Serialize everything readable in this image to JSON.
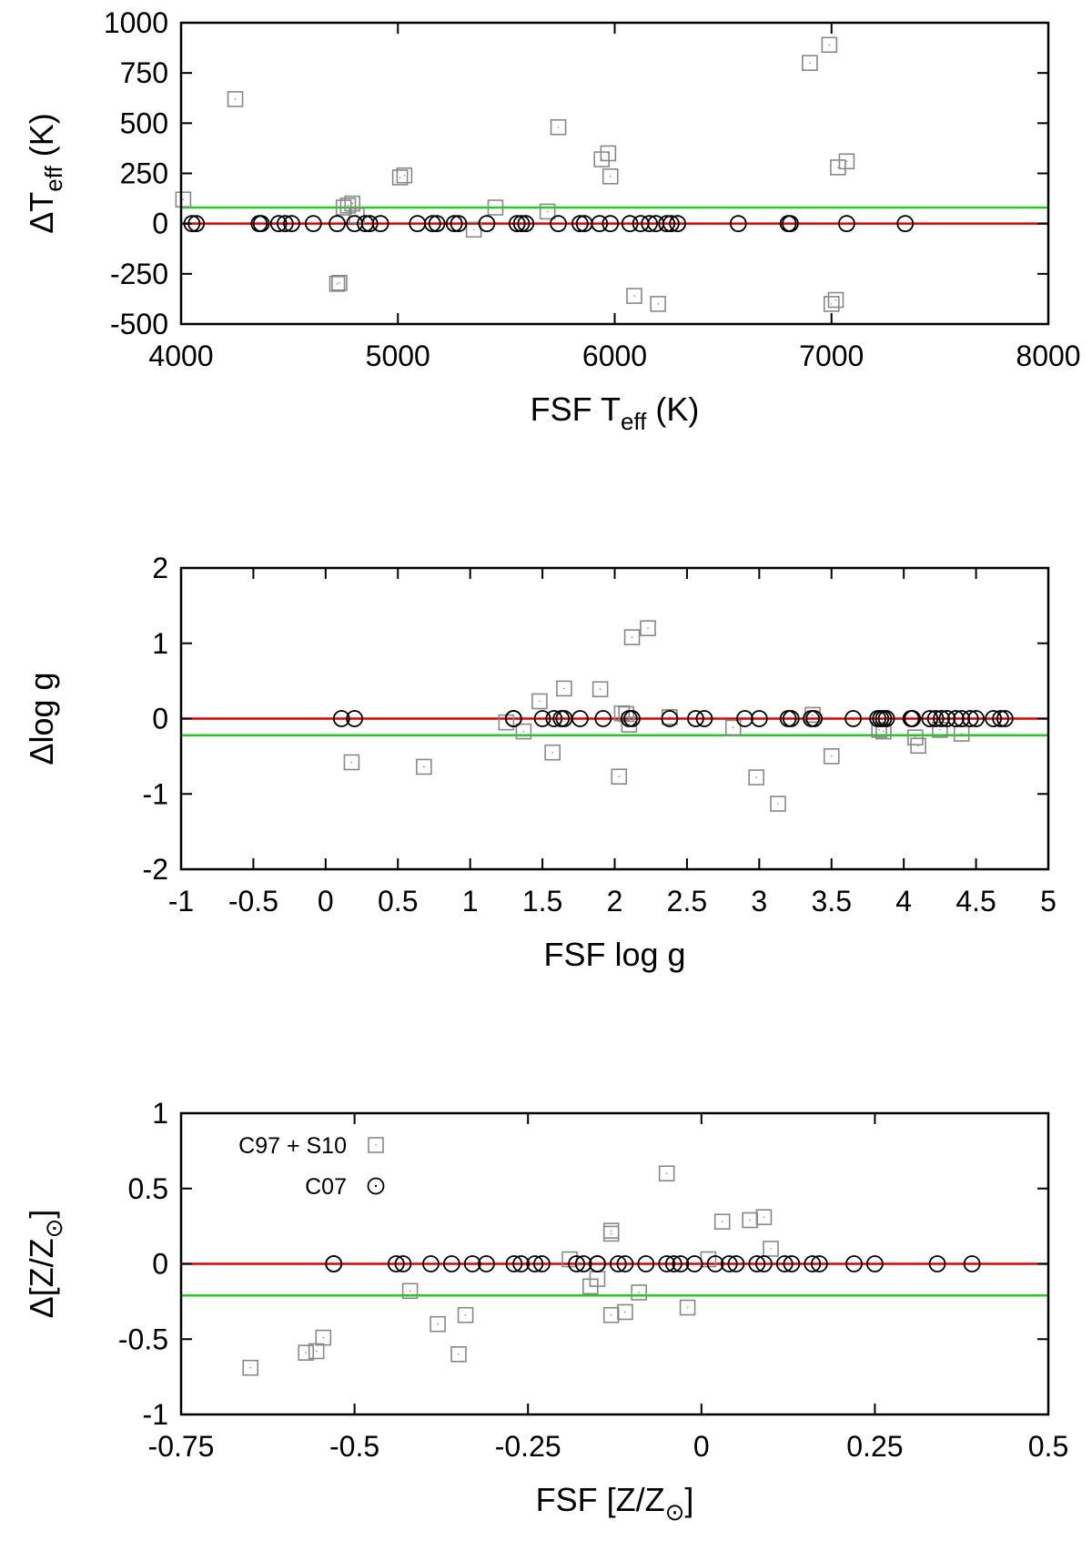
{
  "chart_data": [
    {
      "type": "scatter",
      "xlabel": "FSF T_eff (K)",
      "ylabel": "ΔT_eff (K)",
      "xlim": [
        4000,
        8000
      ],
      "ylim": [
        -500,
        1000
      ],
      "xticks": [
        "4000",
        "5000",
        "6000",
        "7000",
        "8000"
      ],
      "yticks": [
        "1000",
        "750",
        "500",
        "250",
        "0",
        "-250",
        "-500"
      ],
      "xtick_values": [
        4000,
        5000,
        6000,
        7000,
        8000
      ],
      "ytick_values": [
        1000,
        750,
        500,
        250,
        0,
        -250,
        -500
      ],
      "lines": [
        {
          "color": "#dd0000",
          "y": 0
        },
        {
          "color": "#22cc22",
          "y": 80
        }
      ],
      "series": [
        {
          "marker": "square",
          "color": "#888888",
          "points": [
            [
              4010,
              120
            ],
            [
              4250,
              620
            ],
            [
              4720,
              -300
            ],
            [
              4730,
              -295
            ],
            [
              4750,
              80
            ],
            [
              4770,
              90
            ],
            [
              4790,
              100
            ],
            [
              4810,
              40
            ],
            [
              5010,
              230
            ],
            [
              5030,
              240
            ],
            [
              5350,
              -30
            ],
            [
              5450,
              80
            ],
            [
              5690,
              60
            ],
            [
              5740,
              480
            ],
            [
              5940,
              320
            ],
            [
              5970,
              350
            ],
            [
              5980,
              235
            ],
            [
              6090,
              -360
            ],
            [
              6200,
              -400
            ],
            [
              6900,
              800
            ],
            [
              6990,
              890
            ],
            [
              7000,
              -400
            ],
            [
              7020,
              -380
            ],
            [
              7030,
              280
            ],
            [
              7070,
              310
            ]
          ]
        },
        {
          "marker": "circle",
          "color": "#000000",
          "points": [
            [
              4050,
              0
            ],
            [
              4070,
              0
            ],
            [
              4360,
              0
            ],
            [
              4370,
              0
            ],
            [
              4450,
              0
            ],
            [
              4480,
              0
            ],
            [
              4510,
              0
            ],
            [
              4610,
              0
            ],
            [
              4720,
              0
            ],
            [
              4800,
              0
            ],
            [
              4850,
              0
            ],
            [
              4870,
              0
            ],
            [
              4920,
              0
            ],
            [
              5090,
              0
            ],
            [
              5160,
              0
            ],
            [
              5180,
              0
            ],
            [
              5260,
              0
            ],
            [
              5280,
              0
            ],
            [
              5410,
              0
            ],
            [
              5550,
              0
            ],
            [
              5570,
              0
            ],
            [
              5590,
              0
            ],
            [
              5740,
              0
            ],
            [
              5840,
              0
            ],
            [
              5860,
              0
            ],
            [
              5930,
              0
            ],
            [
              5980,
              0
            ],
            [
              6070,
              0
            ],
            [
              6120,
              0
            ],
            [
              6160,
              0
            ],
            [
              6190,
              0
            ],
            [
              6240,
              0
            ],
            [
              6260,
              0
            ],
            [
              6290,
              0
            ],
            [
              6570,
              0
            ],
            [
              6800,
              0
            ],
            [
              6810,
              0
            ],
            [
              7070,
              0
            ],
            [
              7340,
              0
            ]
          ]
        }
      ]
    },
    {
      "type": "scatter",
      "xlabel": "FSF log g",
      "ylabel": "Δlog g",
      "xlim": [
        -1,
        5
      ],
      "ylim": [
        -2,
        2
      ],
      "xticks": [
        "-1",
        "-0.5",
        "0",
        "0.5",
        "1",
        "1.5",
        "2",
        "2.5",
        "3",
        "3.5",
        "4",
        "4.5",
        "5"
      ],
      "yticks": [
        "2",
        "1",
        "0",
        "-1",
        "-2"
      ],
      "xtick_values": [
        -1,
        -0.5,
        0,
        0.5,
        1,
        1.5,
        2,
        2.5,
        3,
        3.5,
        4,
        4.5,
        5
      ],
      "ytick_values": [
        2,
        1,
        0,
        -1,
        -2
      ],
      "lines": [
        {
          "color": "#dd0000",
          "y": 0
        },
        {
          "color": "#22cc22",
          "y": -0.22
        }
      ],
      "series": [
        {
          "marker": "square",
          "color": "#888888",
          "points": [
            [
              0.18,
              -0.58
            ],
            [
              0.68,
              -0.64
            ],
            [
              1.25,
              -0.05
            ],
            [
              1.37,
              -0.17
            ],
            [
              1.48,
              0.23
            ],
            [
              1.57,
              -0.45
            ],
            [
              1.65,
              0.4
            ],
            [
              1.9,
              0.39
            ],
            [
              2.03,
              -0.77
            ],
            [
              2.05,
              0.07
            ],
            [
              2.08,
              0.06
            ],
            [
              2.1,
              -0.08
            ],
            [
              2.12,
              1.08
            ],
            [
              2.23,
              1.2
            ],
            [
              2.38,
              0.02
            ],
            [
              2.82,
              -0.12
            ],
            [
              2.98,
              -0.78
            ],
            [
              3.13,
              -1.13
            ],
            [
              3.37,
              0.05
            ],
            [
              3.5,
              -0.5
            ],
            [
              3.83,
              -0.15
            ],
            [
              3.86,
              -0.17
            ],
            [
              4.08,
              -0.25
            ],
            [
              4.1,
              -0.36
            ],
            [
              4.25,
              -0.15
            ],
            [
              4.4,
              -0.2
            ]
          ]
        },
        {
          "marker": "circle",
          "color": "#000000",
          "points": [
            [
              0.11,
              0
            ],
            [
              0.2,
              0
            ],
            [
              1.3,
              0
            ],
            [
              1.3,
              0
            ],
            [
              1.5,
              0
            ],
            [
              1.58,
              0
            ],
            [
              1.63,
              0
            ],
            [
              1.65,
              0
            ],
            [
              1.76,
              0
            ],
            [
              1.92,
              0
            ],
            [
              2.1,
              0
            ],
            [
              2.12,
              0
            ],
            [
              2.38,
              0
            ],
            [
              2.56,
              0
            ],
            [
              2.62,
              0
            ],
            [
              2.9,
              0
            ],
            [
              3.0,
              0
            ],
            [
              3.2,
              0
            ],
            [
              3.22,
              0
            ],
            [
              3.36,
              0
            ],
            [
              3.38,
              0
            ],
            [
              3.65,
              0
            ],
            [
              3.82,
              0
            ],
            [
              3.84,
              0
            ],
            [
              3.86,
              0
            ],
            [
              3.88,
              0
            ],
            [
              4.05,
              0
            ],
            [
              4.06,
              0
            ],
            [
              4.18,
              0
            ],
            [
              4.22,
              0
            ],
            [
              4.26,
              0
            ],
            [
              4.3,
              0
            ],
            [
              4.36,
              0
            ],
            [
              4.4,
              0
            ],
            [
              4.46,
              0
            ],
            [
              4.5,
              0
            ],
            [
              4.62,
              0
            ],
            [
              4.67,
              0
            ],
            [
              4.7,
              0
            ]
          ]
        }
      ]
    },
    {
      "type": "scatter",
      "xlabel": "FSF [Z/Z_⊙]",
      "ylabel": "Δ[Z/Z_⊙]",
      "xlim": [
        -0.75,
        0.5
      ],
      "ylim": [
        -1,
        1
      ],
      "xticks": [
        "-0.75",
        "-0.5",
        "-0.25",
        "0",
        "0.25",
        "0.5"
      ],
      "yticks": [
        "1",
        "0.5",
        "0",
        "-0.5",
        "-1"
      ],
      "xtick_values": [
        -0.75,
        -0.5,
        -0.25,
        0,
        0.25,
        0.5
      ],
      "ytick_values": [
        1,
        0.5,
        0,
        -0.5,
        -1
      ],
      "legend": {
        "entries": [
          "C97 + S10",
          "C07"
        ],
        "placement": "top-left"
      },
      "lines": [
        {
          "color": "#dd0000",
          "y": 0
        },
        {
          "color": "#22cc22",
          "y": -0.21
        }
      ],
      "series": [
        {
          "name": "C97 + S10",
          "marker": "square",
          "color": "#888888",
          "points": [
            [
              -0.65,
              -0.69
            ],
            [
              -0.57,
              -0.59
            ],
            [
              -0.555,
              -0.58
            ],
            [
              -0.545,
              -0.49
            ],
            [
              -0.42,
              -0.18
            ],
            [
              -0.38,
              -0.4
            ],
            [
              -0.35,
              -0.6
            ],
            [
              -0.34,
              -0.34
            ],
            [
              -0.19,
              0.03
            ],
            [
              -0.16,
              -0.15
            ],
            [
              -0.15,
              -0.1
            ],
            [
              -0.13,
              0.2
            ],
            [
              -0.13,
              0.22
            ],
            [
              -0.13,
              -0.34
            ],
            [
              -0.11,
              -0.32
            ],
            [
              -0.09,
              -0.19
            ],
            [
              -0.05,
              0.6
            ],
            [
              -0.02,
              -0.29
            ],
            [
              0.01,
              0.03
            ],
            [
              0.03,
              0.28
            ],
            [
              0.07,
              0.29
            ],
            [
              0.09,
              0.31
            ],
            [
              0.1,
              0.1
            ]
          ]
        },
        {
          "name": "C07",
          "marker": "circle",
          "color": "#000000",
          "points": [
            [
              -0.53,
              0
            ],
            [
              -0.53,
              0
            ],
            [
              -0.44,
              0
            ],
            [
              -0.43,
              0
            ],
            [
              -0.39,
              0
            ],
            [
              -0.36,
              0
            ],
            [
              -0.33,
              0
            ],
            [
              -0.31,
              0
            ],
            [
              -0.27,
              0
            ],
            [
              -0.26,
              0
            ],
            [
              -0.24,
              0
            ],
            [
              -0.23,
              0
            ],
            [
              -0.18,
              0
            ],
            [
              -0.17,
              0
            ],
            [
              -0.15,
              0
            ],
            [
              -0.15,
              0
            ],
            [
              -0.12,
              0
            ],
            [
              -0.11,
              0
            ],
            [
              -0.08,
              0
            ],
            [
              -0.05,
              0
            ],
            [
              -0.04,
              0
            ],
            [
              -0.03,
              0
            ],
            [
              -0.01,
              0
            ],
            [
              0.02,
              0
            ],
            [
              0.04,
              0
            ],
            [
              0.05,
              0
            ],
            [
              0.08,
              0
            ],
            [
              0.09,
              0
            ],
            [
              0.12,
              0
            ],
            [
              0.13,
              0
            ],
            [
              0.16,
              0
            ],
            [
              0.17,
              0
            ],
            [
              0.22,
              0
            ],
            [
              0.25,
              0
            ],
            [
              0.34,
              0
            ],
            [
              0.39,
              0
            ]
          ]
        }
      ]
    }
  ]
}
